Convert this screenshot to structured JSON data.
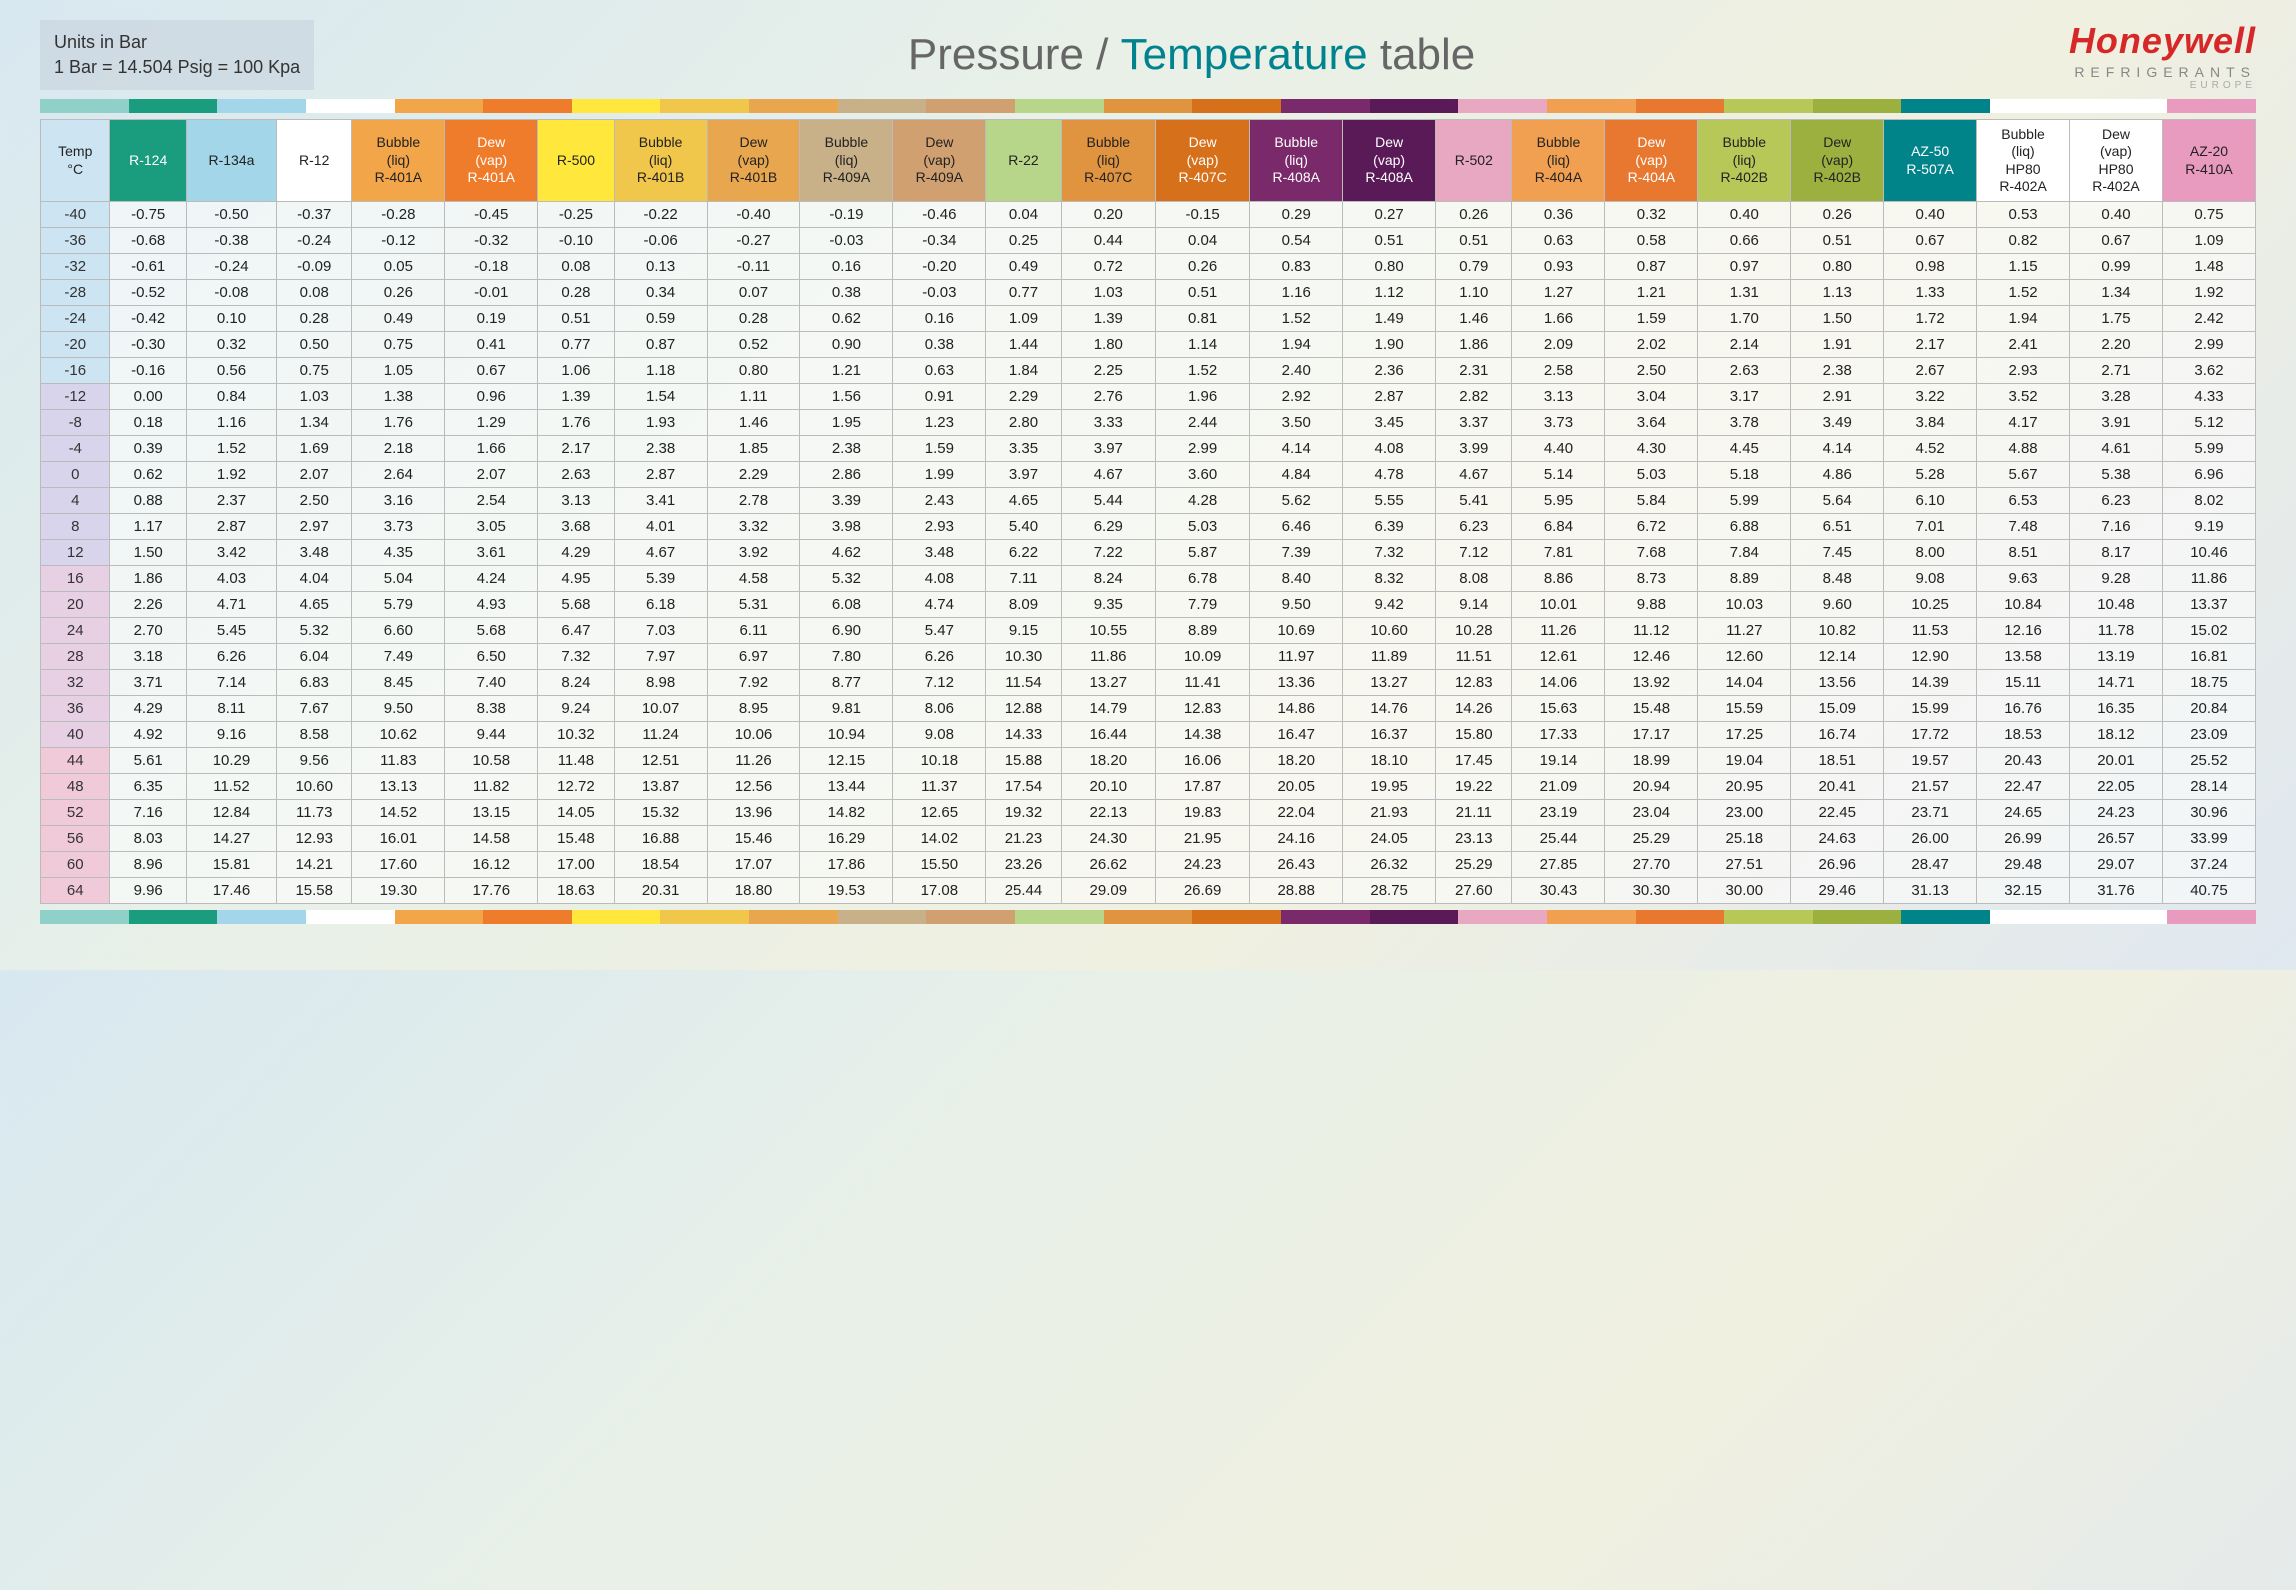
{
  "units": {
    "line1": "Units in Bar",
    "line2": "1 Bar = 14.504 Psig = 100 Kpa"
  },
  "title": {
    "p1": "Pressure / ",
    "p2": "Temperature",
    "p3": " table"
  },
  "brand": {
    "name": "Honeywell",
    "sub": "REFRIGERANTS",
    "sub2": "EUROPE"
  },
  "stripe_colors": [
    "#8fd1c8",
    "#1a9c7f",
    "#a3d6e8",
    "#ffffff",
    "#f3a54a",
    "#ef7c2a",
    "#ffe83b",
    "#f0c74a",
    "#e8a64e",
    "#c8b088",
    "#d0a070",
    "#b8d68a",
    "#e09440",
    "#d6701a",
    "#7a2a6a",
    "#5a1a58",
    "#e8a8c2",
    "#f0a050",
    "#e87830",
    "#b8c858",
    "#9cb040",
    "#00848a",
    "#ffffff",
    "#ffffff",
    "#e89abf"
  ],
  "columns": [
    {
      "l1": "Temp",
      "l2": "°C",
      "bg": "#cde4f2"
    },
    {
      "l1": "R-124",
      "bg": "#1a9c7f",
      "fg": "#fff"
    },
    {
      "l1": "R-134a",
      "bg": "#a3d6e8"
    },
    {
      "l1": "R-12",
      "bg": "#ffffff"
    },
    {
      "l1": "Bubble",
      "l2": "(liq)",
      "l3": "R-401A",
      "bg": "#f3a54a"
    },
    {
      "l1": "Dew",
      "l2": "(vap)",
      "l3": "R-401A",
      "bg": "#ef7c2a",
      "fg": "#fff"
    },
    {
      "l1": "R-500",
      "bg": "#ffe83b"
    },
    {
      "l1": "Bubble",
      "l2": "(liq)",
      "l3": "R-401B",
      "bg": "#f0c74a"
    },
    {
      "l1": "Dew",
      "l2": "(vap)",
      "l3": "R-401B",
      "bg": "#e8a64e"
    },
    {
      "l1": "Bubble",
      "l2": "(liq)",
      "l3": "R-409A",
      "bg": "#c8b088"
    },
    {
      "l1": "Dew",
      "l2": "(vap)",
      "l3": "R-409A",
      "bg": "#d0a070"
    },
    {
      "l1": "R-22",
      "bg": "#b8d68a"
    },
    {
      "l1": "Bubble",
      "l2": "(liq)",
      "l3": "R-407C",
      "bg": "#e09440"
    },
    {
      "l1": "Dew",
      "l2": "(vap)",
      "l3": "R-407C",
      "bg": "#d6701a",
      "fg": "#fff"
    },
    {
      "l1": "Bubble",
      "l2": "(liq)",
      "l3": "R-408A",
      "bg": "#7a2a6a",
      "fg": "#fff"
    },
    {
      "l1": "Dew",
      "l2": "(vap)",
      "l3": "R-408A",
      "bg": "#5a1a58",
      "fg": "#fff"
    },
    {
      "l1": "R-502",
      "bg": "#e8a8c2"
    },
    {
      "l1": "Bubble",
      "l2": "(liq)",
      "l3": "R-404A",
      "bg": "#f0a050"
    },
    {
      "l1": "Dew",
      "l2": "(vap)",
      "l3": "R-404A",
      "bg": "#e87830",
      "fg": "#fff"
    },
    {
      "l1": "Bubble",
      "l2": "(liq)",
      "l3": "R-402B",
      "bg": "#b8c858"
    },
    {
      "l1": "Dew",
      "l2": "(vap)",
      "l3": "R-402B",
      "bg": "#9cb040"
    },
    {
      "l1": "AZ-50",
      "l3": "R-507A",
      "bg": "#00848a",
      "fg": "#fff"
    },
    {
      "l1": "Bubble",
      "l2": "(liq)",
      "l25": "HP80",
      "l3": "R-402A",
      "bg": "#ffffff"
    },
    {
      "l1": "Dew",
      "l2": "(vap)",
      "l25": "HP80",
      "l3": "R-402A",
      "bg": "#ffffff"
    },
    {
      "l1": "AZ-20",
      "l3": "R-410A",
      "bg": "#e89abf"
    }
  ],
  "temps": [
    -40,
    -36,
    -32,
    -28,
    -24,
    -20,
    -16,
    -12,
    -8,
    -4,
    0,
    4,
    8,
    12,
    16,
    20,
    24,
    28,
    32,
    36,
    40,
    44,
    48,
    52,
    56,
    60,
    64
  ],
  "rows": [
    [
      -0.75,
      -0.5,
      -0.37,
      -0.28,
      -0.45,
      -0.25,
      -0.22,
      -0.4,
      -0.19,
      -0.46,
      0.04,
      0.2,
      -0.15,
      0.29,
      0.27,
      0.26,
      0.36,
      0.32,
      0.4,
      0.26,
      0.4,
      0.53,
      0.4,
      0.75
    ],
    [
      -0.68,
      -0.38,
      -0.24,
      -0.12,
      -0.32,
      -0.1,
      -0.06,
      -0.27,
      -0.03,
      -0.34,
      0.25,
      0.44,
      0.04,
      0.54,
      0.51,
      0.51,
      0.63,
      0.58,
      0.66,
      0.51,
      0.67,
      0.82,
      0.67,
      1.09
    ],
    [
      -0.61,
      -0.24,
      -0.09,
      0.05,
      -0.18,
      0.08,
      0.13,
      -0.11,
      0.16,
      -0.2,
      0.49,
      0.72,
      0.26,
      0.83,
      0.8,
      0.79,
      0.93,
      0.87,
      0.97,
      0.8,
      0.98,
      1.15,
      0.99,
      1.48
    ],
    [
      -0.52,
      -0.08,
      0.08,
      0.26,
      -0.01,
      0.28,
      0.34,
      0.07,
      0.38,
      -0.03,
      0.77,
      1.03,
      0.51,
      1.16,
      1.12,
      1.1,
      1.27,
      1.21,
      1.31,
      1.13,
      1.33,
      1.52,
      1.34,
      1.92
    ],
    [
      -0.42,
      0.1,
      0.28,
      0.49,
      0.19,
      0.51,
      0.59,
      0.28,
      0.62,
      0.16,
      1.09,
      1.39,
      0.81,
      1.52,
      1.49,
      1.46,
      1.66,
      1.59,
      1.7,
      1.5,
      1.72,
      1.94,
      1.75,
      2.42
    ],
    [
      -0.3,
      0.32,
      0.5,
      0.75,
      0.41,
      0.77,
      0.87,
      0.52,
      0.9,
      0.38,
      1.44,
      1.8,
      1.14,
      1.94,
      1.9,
      1.86,
      2.09,
      2.02,
      2.14,
      1.91,
      2.17,
      2.41,
      2.2,
      2.99
    ],
    [
      -0.16,
      0.56,
      0.75,
      1.05,
      0.67,
      1.06,
      1.18,
      0.8,
      1.21,
      0.63,
      1.84,
      2.25,
      1.52,
      2.4,
      2.36,
      2.31,
      2.58,
      2.5,
      2.63,
      2.38,
      2.67,
      2.93,
      2.71,
      3.62
    ],
    [
      0.0,
      0.84,
      1.03,
      1.38,
      0.96,
      1.39,
      1.54,
      1.11,
      1.56,
      0.91,
      2.29,
      2.76,
      1.96,
      2.92,
      2.87,
      2.82,
      3.13,
      3.04,
      3.17,
      2.91,
      3.22,
      3.52,
      3.28,
      4.33
    ],
    [
      0.18,
      1.16,
      1.34,
      1.76,
      1.29,
      1.76,
      1.93,
      1.46,
      1.95,
      1.23,
      2.8,
      3.33,
      2.44,
      3.5,
      3.45,
      3.37,
      3.73,
      3.64,
      3.78,
      3.49,
      3.84,
      4.17,
      3.91,
      5.12
    ],
    [
      0.39,
      1.52,
      1.69,
      2.18,
      1.66,
      2.17,
      2.38,
      1.85,
      2.38,
      1.59,
      3.35,
      3.97,
      2.99,
      4.14,
      4.08,
      3.99,
      4.4,
      4.3,
      4.45,
      4.14,
      4.52,
      4.88,
      4.61,
      5.99
    ],
    [
      0.62,
      1.92,
      2.07,
      2.64,
      2.07,
      2.63,
      2.87,
      2.29,
      2.86,
      1.99,
      3.97,
      4.67,
      3.6,
      4.84,
      4.78,
      4.67,
      5.14,
      5.03,
      5.18,
      4.86,
      5.28,
      5.67,
      5.38,
      6.96
    ],
    [
      0.88,
      2.37,
      2.5,
      3.16,
      2.54,
      3.13,
      3.41,
      2.78,
      3.39,
      2.43,
      4.65,
      5.44,
      4.28,
      5.62,
      5.55,
      5.41,
      5.95,
      5.84,
      5.99,
      5.64,
      6.1,
      6.53,
      6.23,
      8.02
    ],
    [
      1.17,
      2.87,
      2.97,
      3.73,
      3.05,
      3.68,
      4.01,
      3.32,
      3.98,
      2.93,
      5.4,
      6.29,
      5.03,
      6.46,
      6.39,
      6.23,
      6.84,
      6.72,
      6.88,
      6.51,
      7.01,
      7.48,
      7.16,
      9.19
    ],
    [
      1.5,
      3.42,
      3.48,
      4.35,
      3.61,
      4.29,
      4.67,
      3.92,
      4.62,
      3.48,
      6.22,
      7.22,
      5.87,
      7.39,
      7.32,
      7.12,
      7.81,
      7.68,
      7.84,
      7.45,
      8.0,
      8.51,
      8.17,
      10.46
    ],
    [
      1.86,
      4.03,
      4.04,
      5.04,
      4.24,
      4.95,
      5.39,
      4.58,
      5.32,
      4.08,
      7.11,
      8.24,
      6.78,
      8.4,
      8.32,
      8.08,
      8.86,
      8.73,
      8.89,
      8.48,
      9.08,
      9.63,
      9.28,
      11.86
    ],
    [
      2.26,
      4.71,
      4.65,
      5.79,
      4.93,
      5.68,
      6.18,
      5.31,
      6.08,
      4.74,
      8.09,
      9.35,
      7.79,
      9.5,
      9.42,
      9.14,
      10.01,
      9.88,
      10.03,
      9.6,
      10.25,
      10.84,
      10.48,
      13.37
    ],
    [
      2.7,
      5.45,
      5.32,
      6.6,
      5.68,
      6.47,
      7.03,
      6.11,
      6.9,
      5.47,
      9.15,
      10.55,
      8.89,
      10.69,
      10.6,
      10.28,
      11.26,
      11.12,
      11.27,
      10.82,
      11.53,
      12.16,
      11.78,
      15.02
    ],
    [
      3.18,
      6.26,
      6.04,
      7.49,
      6.5,
      7.32,
      7.97,
      6.97,
      7.8,
      6.26,
      10.3,
      11.86,
      10.09,
      11.97,
      11.89,
      11.51,
      12.61,
      12.46,
      12.6,
      12.14,
      12.9,
      13.58,
      13.19,
      16.81
    ],
    [
      3.71,
      7.14,
      6.83,
      8.45,
      7.4,
      8.24,
      8.98,
      7.92,
      8.77,
      7.12,
      11.54,
      13.27,
      11.41,
      13.36,
      13.27,
      12.83,
      14.06,
      13.92,
      14.04,
      13.56,
      14.39,
      15.11,
      14.71,
      18.75
    ],
    [
      4.29,
      8.11,
      7.67,
      9.5,
      8.38,
      9.24,
      10.07,
      8.95,
      9.81,
      8.06,
      12.88,
      14.79,
      12.83,
      14.86,
      14.76,
      14.26,
      15.63,
      15.48,
      15.59,
      15.09,
      15.99,
      16.76,
      16.35,
      20.84
    ],
    [
      4.92,
      9.16,
      8.58,
      10.62,
      9.44,
      10.32,
      11.24,
      10.06,
      10.94,
      9.08,
      14.33,
      16.44,
      14.38,
      16.47,
      16.37,
      15.8,
      17.33,
      17.17,
      17.25,
      16.74,
      17.72,
      18.53,
      18.12,
      23.09
    ],
    [
      5.61,
      10.29,
      9.56,
      11.83,
      10.58,
      11.48,
      12.51,
      11.26,
      12.15,
      10.18,
      15.88,
      18.2,
      16.06,
      18.2,
      18.1,
      17.45,
      19.14,
      18.99,
      19.04,
      18.51,
      19.57,
      20.43,
      20.01,
      25.52
    ],
    [
      6.35,
      11.52,
      10.6,
      13.13,
      11.82,
      12.72,
      13.87,
      12.56,
      13.44,
      11.37,
      17.54,
      20.1,
      17.87,
      20.05,
      19.95,
      19.22,
      21.09,
      20.94,
      20.95,
      20.41,
      21.57,
      22.47,
      22.05,
      28.14
    ],
    [
      7.16,
      12.84,
      11.73,
      14.52,
      13.15,
      14.05,
      15.32,
      13.96,
      14.82,
      12.65,
      19.32,
      22.13,
      19.83,
      22.04,
      21.93,
      21.11,
      23.19,
      23.04,
      23.0,
      22.45,
      23.71,
      24.65,
      24.23,
      30.96
    ],
    [
      8.03,
      14.27,
      12.93,
      16.01,
      14.58,
      15.48,
      16.88,
      15.46,
      16.29,
      14.02,
      21.23,
      24.3,
      21.95,
      24.16,
      24.05,
      23.13,
      25.44,
      25.29,
      25.18,
      24.63,
      26.0,
      26.99,
      26.57,
      33.99
    ],
    [
      8.96,
      15.81,
      14.21,
      17.6,
      16.12,
      17.0,
      18.54,
      17.07,
      17.86,
      15.5,
      23.26,
      26.62,
      24.23,
      26.43,
      26.32,
      25.29,
      27.85,
      27.7,
      27.51,
      26.96,
      28.47,
      29.48,
      29.07,
      37.24
    ],
    [
      9.96,
      17.46,
      15.58,
      19.3,
      17.76,
      18.63,
      20.31,
      18.8,
      19.53,
      17.08,
      25.44,
      29.09,
      26.69,
      28.88,
      28.75,
      27.6,
      30.43,
      30.3,
      30.0,
      29.46,
      31.13,
      32.15,
      31.76,
      40.75
    ]
  ]
}
